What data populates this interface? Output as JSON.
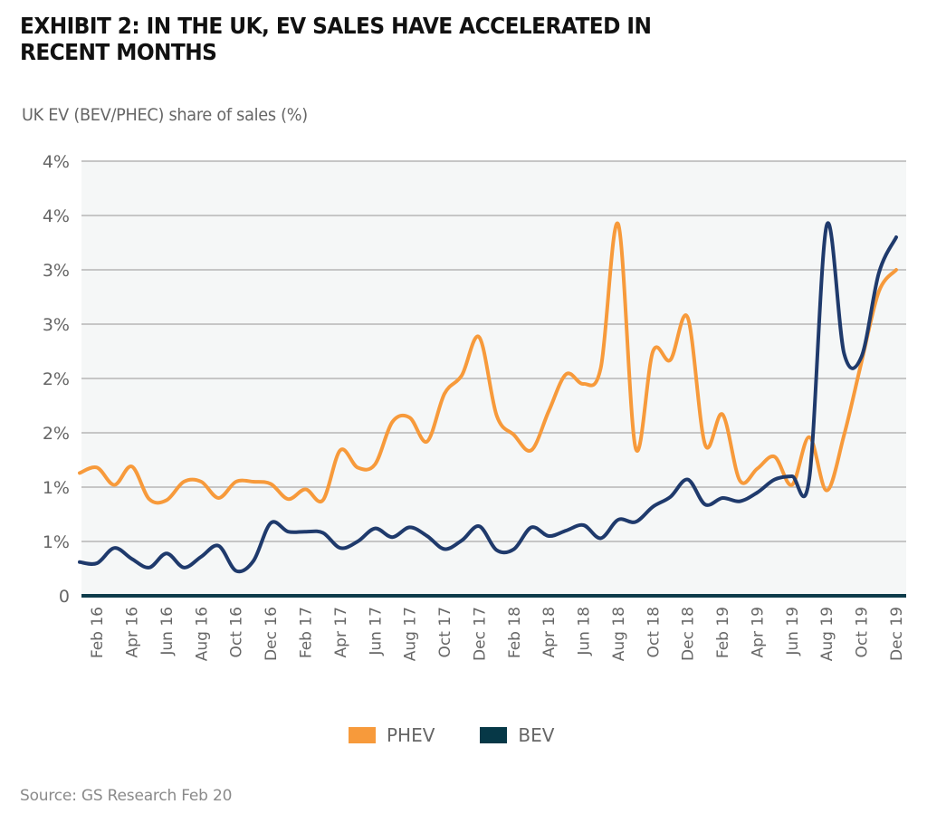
{
  "header": {
    "title": "EXHIBIT 2: IN THE UK, EV SALES HAVE ACCELERATED IN RECENT MONTHS",
    "subtitle": "UK EV (BEV/PHEC) share of sales (%)"
  },
  "footer": {
    "source": "Source: GS Research Feb 20"
  },
  "colors": {
    "phev": "#f79a3b",
    "bev_line": "#1f3a6c",
    "bev_legend": "#063847",
    "baseline": "#0d3b4a",
    "plot_bg": "#f5f7f7",
    "grid": "#c6c6c6"
  },
  "chart_data": {
    "type": "line",
    "title": "EXHIBIT 2: IN THE UK, EV SALES HAVE ACCELERATED IN RECENT MONTHS",
    "ylabel": "UK EV (BEV/PHEC) share of sales (%)",
    "xlabel": "",
    "ylim": [
      0,
      4
    ],
    "grid": true,
    "legend_position": "bottom",
    "y_ticks": [
      {
        "value": 0,
        "label": "0"
      },
      {
        "value": 0.5,
        "label": "1%"
      },
      {
        "value": 1.0,
        "label": "1%"
      },
      {
        "value": 1.5,
        "label": "2%"
      },
      {
        "value": 2.0,
        "label": "2%"
      },
      {
        "value": 2.5,
        "label": "3%"
      },
      {
        "value": 3.0,
        "label": "3%"
      },
      {
        "value": 3.5,
        "label": "4%"
      },
      {
        "value": 4.0,
        "label": "4%"
      }
    ],
    "x": [
      "Jan 16",
      "Feb 16",
      "Mar 16",
      "Apr 16",
      "May 16",
      "Jun 16",
      "Jul 16",
      "Aug 16",
      "Sep 16",
      "Oct 16",
      "Nov 16",
      "Dec 16",
      "Jan 17",
      "Feb 17",
      "Mar 17",
      "Apr 17",
      "May 17",
      "Jun 17",
      "Jul 17",
      "Aug 17",
      "Sep 17",
      "Oct 17",
      "Nov 17",
      "Dec 17",
      "Jan 18",
      "Feb 18",
      "Mar 18",
      "Apr 18",
      "May 18",
      "Jun 18",
      "Jul 18",
      "Aug 18",
      "Sep 18",
      "Oct 18",
      "Nov 18",
      "Dec 18",
      "Jan 19",
      "Feb 19",
      "Mar 19",
      "Apr 19",
      "May 19",
      "Jun 19",
      "Jul 19",
      "Aug 19",
      "Sep 19",
      "Oct 19",
      "Nov 19",
      "Dec 19"
    ],
    "x_tick_labels": [
      "Feb 16",
      "Apr 16",
      "Jun 16",
      "Aug 16",
      "Oct 16",
      "Dec 16",
      "Feb 17",
      "Apr 17",
      "Jun 17",
      "Aug 17",
      "Oct 17",
      "Dec 17",
      "Feb 18",
      "Apr 18",
      "Jun 18",
      "Aug 18",
      "Oct 18",
      "Dec 18",
      "Feb 19",
      "Apr 19",
      "Jun 19",
      "Aug 19",
      "Oct 19",
      "Dec 19"
    ],
    "series": [
      {
        "name": "PHEV",
        "values": [
          1.13,
          1.18,
          1.02,
          1.19,
          0.89,
          0.88,
          1.05,
          1.05,
          0.9,
          1.05,
          1.05,
          1.03,
          0.89,
          0.98,
          0.88,
          1.34,
          1.18,
          1.21,
          1.6,
          1.64,
          1.42,
          1.86,
          2.03,
          2.38,
          1.66,
          1.48,
          1.34,
          1.7,
          2.04,
          1.95,
          2.1,
          3.42,
          1.36,
          2.25,
          2.17,
          2.56,
          1.39,
          1.67,
          1.06,
          1.17,
          1.28,
          1.02,
          1.46,
          0.97,
          1.48,
          2.15,
          2.8,
          3.0
        ]
      },
      {
        "name": "BEV",
        "values": [
          0.31,
          0.3,
          0.44,
          0.34,
          0.26,
          0.39,
          0.26,
          0.36,
          0.46,
          0.23,
          0.32,
          0.67,
          0.59,
          0.59,
          0.58,
          0.44,
          0.5,
          0.62,
          0.54,
          0.63,
          0.55,
          0.43,
          0.51,
          0.64,
          0.42,
          0.43,
          0.63,
          0.55,
          0.6,
          0.65,
          0.53,
          0.7,
          0.68,
          0.82,
          0.91,
          1.07,
          0.84,
          0.9,
          0.87,
          0.95,
          1.07,
          1.1,
          1.08,
          3.41,
          2.23,
          2.2,
          2.97,
          3.3
        ]
      }
    ]
  },
  "legend": {
    "items": [
      {
        "label": "PHEV"
      },
      {
        "label": "BEV"
      }
    ]
  }
}
